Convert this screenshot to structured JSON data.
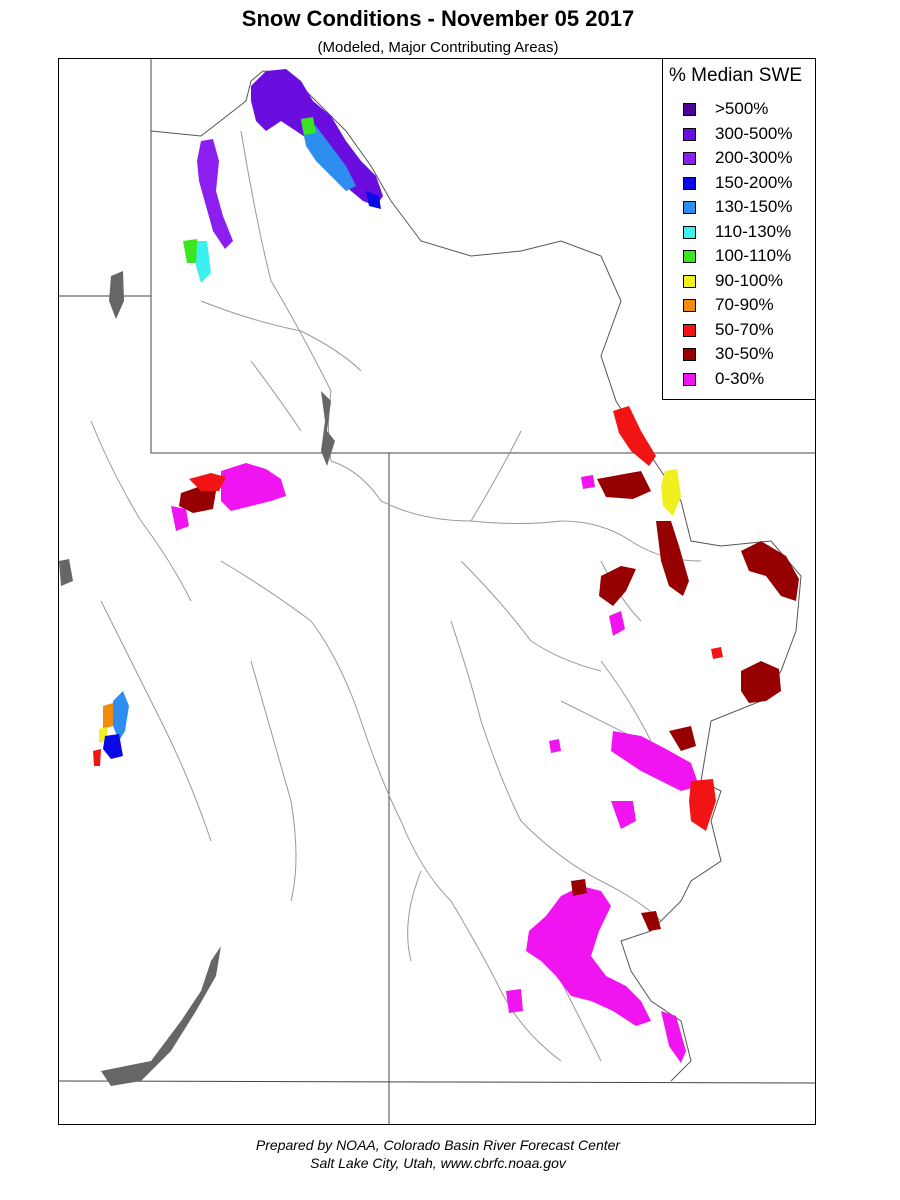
{
  "title": "Snow Conditions - November 05 2017",
  "subtitle": "(Modeled, Major Contributing Areas)",
  "legend": {
    "title": "% Median SWE",
    "items": [
      {
        "label": ">500%",
        "color": "#4b0096"
      },
      {
        "label": "300-500%",
        "color": "#6a0ee0"
      },
      {
        "label": "200-300%",
        "color": "#8c1ef0"
      },
      {
        "label": "150-200%",
        "color": "#0a0ae6"
      },
      {
        "label": "130-150%",
        "color": "#2e8ef0"
      },
      {
        "label": "110-130%",
        "color": "#3cf0f0"
      },
      {
        "label": "100-110%",
        "color": "#3ce61e"
      },
      {
        "label": "90-100%",
        "color": "#f0f01e"
      },
      {
        "label": "70-90%",
        "color": "#f08c0a"
      },
      {
        "label": "50-70%",
        "color": "#f01414"
      },
      {
        "label": "30-50%",
        "color": "#960000"
      },
      {
        "label": "0-30%",
        "color": "#f014f0"
      }
    ]
  },
  "credits": {
    "line1": "Prepared by NOAA, Colorado Basin River Forecast Center",
    "line2": "Salt Lake City, Utah, www.cbrfc.noaa.gov"
  }
}
